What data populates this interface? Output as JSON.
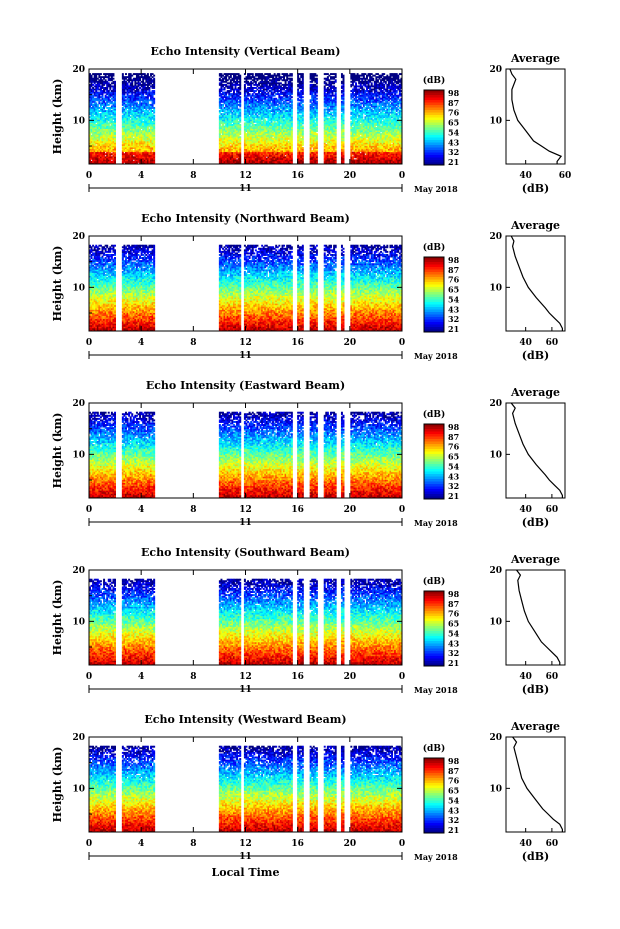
{
  "chart_data": [
    {
      "type": "heatmap",
      "title": "Echo Intensity (Vertical Beam)",
      "ylabel": "Height (km)",
      "x_ticks": [
        "0",
        "4",
        "8",
        "12",
        "16",
        "20",
        "0"
      ],
      "y_ticks": [
        "20",
        "10"
      ],
      "xlim": [
        0,
        24
      ],
      "ylim": [
        1.5,
        20
      ],
      "date_center": "11",
      "date_right": "May 2018",
      "colorbar": {
        "label": "(dB)",
        "ticks": [
          "98",
          "87",
          "76",
          "65",
          "54",
          "43",
          "32",
          "21"
        ]
      },
      "data_gaps_hours": [
        [
          2,
          2.5
        ],
        [
          5,
          10
        ],
        [
          11.6,
          11.9
        ],
        [
          15.6,
          15.9
        ],
        [
          16.4,
          16.9
        ],
        [
          17.5,
          18
        ],
        [
          19,
          19.3
        ],
        [
          19.6,
          20
        ]
      ],
      "profile": {
        "title": "Average",
        "xlabel": "(dB)",
        "x_ticks": [
          "40",
          "60"
        ],
        "xlim": [
          30,
          60
        ],
        "y_ticks": [
          "20",
          "10"
        ],
        "heights": [
          2,
          3,
          4,
          5,
          6,
          8,
          10,
          12,
          14,
          16,
          18,
          19,
          20
        ],
        "values": [
          56,
          58,
          52,
          48,
          44,
          40,
          36,
          34,
          33,
          33,
          35,
          33,
          32
        ]
      }
    },
    {
      "type": "heatmap",
      "title": "Echo Intensity (Northward Beam)",
      "ylabel": "Height (km)",
      "x_ticks": [
        "0",
        "4",
        "8",
        "12",
        "16",
        "20",
        "0"
      ],
      "y_ticks": [
        "20",
        "10"
      ],
      "xlim": [
        0,
        24
      ],
      "ylim": [
        1.5,
        20
      ],
      "date_center": "11",
      "date_right": "May 2018",
      "colorbar": {
        "label": "(dB)",
        "ticks": [
          "98",
          "87",
          "76",
          "65",
          "54",
          "43",
          "32",
          "21"
        ]
      },
      "data_gaps_hours": [
        [
          2,
          2.5
        ],
        [
          5,
          10
        ],
        [
          11.6,
          11.9
        ],
        [
          15.6,
          15.9
        ],
        [
          16.4,
          16.9
        ],
        [
          17.5,
          18
        ],
        [
          19,
          19.3
        ],
        [
          19.6,
          20
        ]
      ],
      "profile": {
        "title": "Average",
        "xlabel": "(dB)",
        "x_ticks": [
          "40",
          "60"
        ],
        "xlim": [
          25,
          70
        ],
        "y_ticks": [
          "20",
          "10"
        ],
        "heights": [
          2,
          3,
          4,
          5,
          6,
          8,
          10,
          12,
          14,
          16,
          18,
          19,
          20
        ],
        "values": [
          68,
          66,
          62,
          58,
          55,
          48,
          42,
          38,
          35,
          32,
          30,
          31,
          29
        ]
      }
    },
    {
      "type": "heatmap",
      "title": "Echo Intensity (Eastward Beam)",
      "ylabel": "Height (km)",
      "x_ticks": [
        "0",
        "4",
        "8",
        "12",
        "16",
        "20",
        "0"
      ],
      "y_ticks": [
        "20",
        "10"
      ],
      "xlim": [
        0,
        24
      ],
      "ylim": [
        1.5,
        20
      ],
      "date_center": "11",
      "date_right": "May 2018",
      "colorbar": {
        "label": "(dB)",
        "ticks": [
          "98",
          "87",
          "76",
          "65",
          "54",
          "43",
          "32",
          "21"
        ]
      },
      "data_gaps_hours": [
        [
          2,
          2.5
        ],
        [
          5,
          10
        ],
        [
          11.6,
          11.9
        ],
        [
          15.6,
          15.9
        ],
        [
          16.4,
          16.9
        ],
        [
          17.5,
          18
        ],
        [
          19,
          19.3
        ],
        [
          19.6,
          20
        ]
      ],
      "profile": {
        "title": "Average",
        "xlabel": "(dB)",
        "x_ticks": [
          "40",
          "60"
        ],
        "xlim": [
          25,
          70
        ],
        "y_ticks": [
          "20",
          "10"
        ],
        "heights": [
          2,
          3,
          4,
          5,
          6,
          8,
          10,
          12,
          14,
          16,
          18,
          19,
          20
        ],
        "values": [
          68,
          66,
          62,
          58,
          55,
          48,
          42,
          38,
          35,
          32,
          30,
          32,
          29
        ]
      }
    },
    {
      "type": "heatmap",
      "title": "Echo Intensity (Southward Beam)",
      "ylabel": "Height (km)",
      "x_ticks": [
        "0",
        "4",
        "8",
        "12",
        "16",
        "20",
        "0"
      ],
      "y_ticks": [
        "20",
        "10"
      ],
      "xlim": [
        0,
        24
      ],
      "ylim": [
        1.5,
        20
      ],
      "date_center": "11",
      "date_right": "May 2018",
      "colorbar": {
        "label": "(dB)",
        "ticks": [
          "98",
          "87",
          "76",
          "65",
          "54",
          "43",
          "32",
          "21"
        ]
      },
      "data_gaps_hours": [
        [
          2,
          2.5
        ],
        [
          5,
          10
        ],
        [
          11.6,
          11.9
        ],
        [
          15.6,
          15.9
        ],
        [
          16.4,
          16.9
        ],
        [
          17.5,
          18
        ],
        [
          19,
          19.3
        ],
        [
          19.6,
          20
        ]
      ],
      "profile": {
        "title": "Average",
        "xlabel": "(dB)",
        "x_ticks": [
          "40",
          "60"
        ],
        "xlim": [
          25,
          70
        ],
        "y_ticks": [
          "20",
          "10"
        ],
        "heights": [
          2,
          3,
          4,
          5,
          6,
          8,
          10,
          12,
          14,
          16,
          18,
          19,
          20
        ],
        "values": [
          66,
          64,
          60,
          56,
          52,
          47,
          42,
          39,
          37,
          35,
          34,
          36,
          33
        ]
      }
    },
    {
      "type": "heatmap",
      "title": "Echo Intensity (Westward Beam)",
      "ylabel": "Height (km)",
      "xlabel": "Local Time",
      "x_ticks": [
        "0",
        "4",
        "8",
        "12",
        "16",
        "20",
        "0"
      ],
      "y_ticks": [
        "20",
        "10"
      ],
      "xlim": [
        0,
        24
      ],
      "ylim": [
        1.5,
        20
      ],
      "date_center": "11",
      "date_right": "May 2018",
      "colorbar": {
        "label": "(dB)",
        "ticks": [
          "98",
          "87",
          "76",
          "65",
          "54",
          "43",
          "32",
          "21"
        ]
      },
      "data_gaps_hours": [
        [
          2,
          2.5
        ],
        [
          5,
          10
        ],
        [
          11.6,
          11.9
        ],
        [
          15.6,
          15.9
        ],
        [
          16.4,
          16.9
        ],
        [
          17.5,
          18
        ],
        [
          19,
          19.3
        ],
        [
          19.6,
          20
        ]
      ],
      "profile": {
        "title": "Average",
        "xlabel": "(dB)",
        "x_ticks": [
          "40",
          "60"
        ],
        "xlim": [
          25,
          70
        ],
        "y_ticks": [
          "20",
          "10"
        ],
        "heights": [
          2,
          3,
          4,
          5,
          6,
          8,
          10,
          12,
          14,
          16,
          18,
          19,
          20
        ],
        "values": [
          68,
          66,
          61,
          57,
          53,
          47,
          41,
          37,
          35,
          33,
          31,
          33,
          30
        ]
      }
    }
  ]
}
